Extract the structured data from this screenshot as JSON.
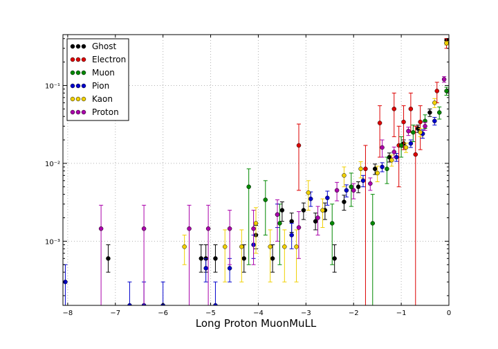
{
  "chart_data": {
    "type": "scatter",
    "xlabel": "Long Proton MuonMuLL",
    "ylabel": "",
    "title": "",
    "xlim": [
      -8.1,
      0
    ],
    "ylim": [
      0.00015,
      0.45
    ],
    "yscale": "log",
    "grid": true,
    "legend_position": "top-left",
    "xticks": [
      -8,
      -7,
      -6,
      -5,
      -4,
      -3,
      -2,
      -1,
      0
    ],
    "xtick_labels": [
      "−8",
      "−7",
      "−6",
      "−5",
      "−4",
      "−3",
      "−2",
      "−1",
      "0"
    ],
    "yticks": [
      0.001,
      0.01,
      0.1
    ],
    "ytick_labels": [
      "10⁻³",
      "10⁻²",
      "10⁻¹"
    ],
    "series": [
      {
        "name": "Ghost",
        "color": "#000000",
        "points": [
          {
            "x": -7.15,
            "y": 0.0006,
            "lo": 0.0004,
            "hi": 0.0009
          },
          {
            "x": -5.2,
            "y": 0.0006,
            "lo": 0.0004,
            "hi": 0.0009
          },
          {
            "x": -5.1,
            "y": 0.0006,
            "lo": 0.0004,
            "hi": 0.0009
          },
          {
            "x": -4.9,
            "y": 0.0006,
            "lo": 0.0004,
            "hi": 0.0009
          },
          {
            "x": -4.3,
            "y": 0.0006,
            "lo": 0.0004,
            "hi": 0.0009
          },
          {
            "x": -4.05,
            "y": 0.0012,
            "lo": 0.0008,
            "hi": 0.0016
          },
          {
            "x": -3.7,
            "y": 0.0006,
            "lo": 0.0004,
            "hi": 0.0009
          },
          {
            "x": -3.5,
            "y": 0.0025,
            "lo": 0.0018,
            "hi": 0.0032
          },
          {
            "x": -3.3,
            "y": 0.0018,
            "lo": 0.0013,
            "hi": 0.0023
          },
          {
            "x": -3.05,
            "y": 0.0025,
            "lo": 0.0019,
            "hi": 0.0031
          },
          {
            "x": -2.8,
            "y": 0.0018,
            "lo": 0.0014,
            "hi": 0.0023
          },
          {
            "x": -2.6,
            "y": 0.0025,
            "lo": 0.0019,
            "hi": 0.0031
          },
          {
            "x": -2.4,
            "y": 0.0006,
            "lo": 0.0004,
            "hi": 0.0009
          },
          {
            "x": -2.2,
            "y": 0.0032,
            "lo": 0.0025,
            "hi": 0.0039
          },
          {
            "x": -1.9,
            "y": 0.005,
            "lo": 0.0042,
            "hi": 0.0058
          },
          {
            "x": -1.55,
            "y": 0.0085,
            "lo": 0.0072,
            "hi": 0.0098
          },
          {
            "x": -1.25,
            "y": 0.012,
            "lo": 0.0104,
            "hi": 0.0136
          },
          {
            "x": -0.95,
            "y": 0.018,
            "lo": 0.016,
            "hi": 0.02
          },
          {
            "x": -0.65,
            "y": 0.028,
            "lo": 0.025,
            "hi": 0.031
          },
          {
            "x": -0.4,
            "y": 0.045,
            "lo": 0.04,
            "hi": 0.05
          },
          {
            "x": -0.05,
            "y": 0.38,
            "lo": 0.36,
            "hi": 0.4
          }
        ]
      },
      {
        "name": "Electron",
        "color": "#dd0000",
        "points": [
          {
            "x": -3.15,
            "y": 0.017,
            "lo": 0.0045,
            "hi": 0.032
          },
          {
            "x": -1.75,
            "y": 0.0085,
            "lo": 0.00015,
            "hi": 0.017
          },
          {
            "x": -1.45,
            "y": 0.033,
            "lo": 0.012,
            "hi": 0.055
          },
          {
            "x": -1.15,
            "y": 0.05,
            "lo": 0.022,
            "hi": 0.08
          },
          {
            "x": -1.05,
            "y": 0.017,
            "lo": 0.005,
            "hi": 0.03
          },
          {
            "x": -0.95,
            "y": 0.034,
            "lo": 0.015,
            "hi": 0.055
          },
          {
            "x": -0.8,
            "y": 0.05,
            "lo": 0.025,
            "hi": 0.08
          },
          {
            "x": -0.7,
            "y": 0.013,
            "lo": 0.00015,
            "hi": 0.03
          },
          {
            "x": -0.6,
            "y": 0.034,
            "lo": 0.015,
            "hi": 0.055
          },
          {
            "x": -0.25,
            "y": 0.085,
            "lo": 0.06,
            "hi": 0.11
          },
          {
            "x": -0.05,
            "y": 0.35,
            "lo": 0.3,
            "hi": 0.4
          }
        ]
      },
      {
        "name": "Muon",
        "color": "#008800",
        "points": [
          {
            "x": -4.2,
            "y": 0.005,
            "lo": 0.0005,
            "hi": 0.0085
          },
          {
            "x": -3.85,
            "y": 0.0034,
            "lo": 0.0012,
            "hi": 0.006
          },
          {
            "x": -3.55,
            "y": 0.0017,
            "lo": 0.0005,
            "hi": 0.003
          },
          {
            "x": -2.45,
            "y": 0.0017,
            "lo": 0.0005,
            "hi": 0.003
          },
          {
            "x": -2.05,
            "y": 0.005,
            "lo": 0.0028,
            "hi": 0.0075
          },
          {
            "x": -1.6,
            "y": 0.0017,
            "lo": 0.00015,
            "hi": 0.004
          },
          {
            "x": -1.3,
            "y": 0.0085,
            "lo": 0.0055,
            "hi": 0.012
          },
          {
            "x": -1.0,
            "y": 0.017,
            "lo": 0.012,
            "hi": 0.022
          },
          {
            "x": -0.75,
            "y": 0.025,
            "lo": 0.019,
            "hi": 0.031
          },
          {
            "x": -0.5,
            "y": 0.035,
            "lo": 0.028,
            "hi": 0.042
          },
          {
            "x": -0.2,
            "y": 0.045,
            "lo": 0.037,
            "hi": 0.053
          },
          {
            "x": -0.05,
            "y": 0.085,
            "lo": 0.075,
            "hi": 0.095
          }
        ]
      },
      {
        "name": "Pion",
        "color": "#0000cc",
        "points": [
          {
            "x": -8.05,
            "y": 0.0003,
            "lo": 0.00015,
            "hi": 0.0005
          },
          {
            "x": -6.7,
            "y": 0.00015,
            "lo": 0.00015,
            "hi": 0.0003
          },
          {
            "x": -6.4,
            "y": 0.00015,
            "lo": 0.00015,
            "hi": 0.0003
          },
          {
            "x": -6.0,
            "y": 0.00015,
            "lo": 0.00015,
            "hi": 0.0003
          },
          {
            "x": -5.1,
            "y": 0.00045,
            "lo": 0.0003,
            "hi": 0.0006
          },
          {
            "x": -4.9,
            "y": 0.00015,
            "lo": 0.00015,
            "hi": 0.0003
          },
          {
            "x": -4.6,
            "y": 0.00045,
            "lo": 0.0003,
            "hi": 0.0006
          },
          {
            "x": -4.1,
            "y": 0.0009,
            "lo": 0.0006,
            "hi": 0.0012
          },
          {
            "x": -3.6,
            "y": 0.0022,
            "lo": 0.0015,
            "hi": 0.003
          },
          {
            "x": -3.3,
            "y": 0.0012,
            "lo": 0.0008,
            "hi": 0.0017
          },
          {
            "x": -2.9,
            "y": 0.0035,
            "lo": 0.0028,
            "hi": 0.0043
          },
          {
            "x": -2.55,
            "y": 0.0036,
            "lo": 0.0029,
            "hi": 0.0044
          },
          {
            "x": -2.15,
            "y": 0.0045,
            "lo": 0.0037,
            "hi": 0.0053
          },
          {
            "x": -1.8,
            "y": 0.006,
            "lo": 0.005,
            "hi": 0.007
          },
          {
            "x": -1.4,
            "y": 0.009,
            "lo": 0.0078,
            "hi": 0.0102
          },
          {
            "x": -1.1,
            "y": 0.012,
            "lo": 0.0106,
            "hi": 0.0134
          },
          {
            "x": -0.8,
            "y": 0.018,
            "lo": 0.016,
            "hi": 0.02
          },
          {
            "x": -0.55,
            "y": 0.024,
            "lo": 0.021,
            "hi": 0.027
          },
          {
            "x": -0.3,
            "y": 0.035,
            "lo": 0.031,
            "hi": 0.039
          }
        ]
      },
      {
        "name": "Kaon",
        "color": "#f0d000",
        "points": [
          {
            "x": -5.55,
            "y": 0.00085,
            "lo": 0.0005,
            "hi": 0.0012
          },
          {
            "x": -4.7,
            "y": 0.00085,
            "lo": 0.0003,
            "hi": 0.0014
          },
          {
            "x": -4.35,
            "y": 0.00085,
            "lo": 0.0003,
            "hi": 0.0014
          },
          {
            "x": -4.05,
            "y": 0.0017,
            "lo": 0.0007,
            "hi": 0.0027
          },
          {
            "x": -3.75,
            "y": 0.00085,
            "lo": 0.0003,
            "hi": 0.0014
          },
          {
            "x": -3.45,
            "y": 0.00085,
            "lo": 0.0003,
            "hi": 0.0014
          },
          {
            "x": -3.2,
            "y": 0.00085,
            "lo": 0.0003,
            "hi": 0.0014
          },
          {
            "x": -2.95,
            "y": 0.0042,
            "lo": 0.0025,
            "hi": 0.006
          },
          {
            "x": -2.65,
            "y": 0.0025,
            "lo": 0.0015,
            "hi": 0.0035
          },
          {
            "x": -2.2,
            "y": 0.007,
            "lo": 0.005,
            "hi": 0.009
          },
          {
            "x": -1.85,
            "y": 0.0085,
            "lo": 0.0065,
            "hi": 0.0105
          },
          {
            "x": -1.5,
            "y": 0.0075,
            "lo": 0.0058,
            "hi": 0.0092
          },
          {
            "x": -1.2,
            "y": 0.011,
            "lo": 0.0092,
            "hi": 0.0128
          },
          {
            "x": -0.9,
            "y": 0.016,
            "lo": 0.0138,
            "hi": 0.0182
          },
          {
            "x": -0.6,
            "y": 0.025,
            "lo": 0.022,
            "hi": 0.028
          },
          {
            "x": -0.3,
            "y": 0.06,
            "lo": 0.052,
            "hi": 0.068
          },
          {
            "x": -0.05,
            "y": 0.35,
            "lo": 0.33,
            "hi": 0.37
          }
        ]
      },
      {
        "name": "Proton",
        "color": "#aa00aa",
        "points": [
          {
            "x": -7.3,
            "y": 0.00145,
            "lo": 0.00015,
            "hi": 0.0029
          },
          {
            "x": -6.4,
            "y": 0.00145,
            "lo": 0.00015,
            "hi": 0.0029
          },
          {
            "x": -5.45,
            "y": 0.00145,
            "lo": 0.00015,
            "hi": 0.0029
          },
          {
            "x": -5.05,
            "y": 0.00145,
            "lo": 0.00015,
            "hi": 0.0029
          },
          {
            "x": -4.6,
            "y": 0.00145,
            "lo": 0.0005,
            "hi": 0.0025
          },
          {
            "x": -4.1,
            "y": 0.00145,
            "lo": 0.0005,
            "hi": 0.0025
          },
          {
            "x": -3.6,
            "y": 0.0022,
            "lo": 0.001,
            "hi": 0.0034
          },
          {
            "x": -3.15,
            "y": 0.0015,
            "lo": 0.0006,
            "hi": 0.0024
          },
          {
            "x": -2.75,
            "y": 0.002,
            "lo": 0.0012,
            "hi": 0.0028
          },
          {
            "x": -2.35,
            "y": 0.0045,
            "lo": 0.0033,
            "hi": 0.0057
          },
          {
            "x": -2.0,
            "y": 0.0045,
            "lo": 0.0035,
            "hi": 0.0055
          },
          {
            "x": -1.65,
            "y": 0.0055,
            "lo": 0.0045,
            "hi": 0.0065
          },
          {
            "x": -1.4,
            "y": 0.016,
            "lo": 0.012,
            "hi": 0.02
          },
          {
            "x": -1.15,
            "y": 0.014,
            "lo": 0.0118,
            "hi": 0.0162
          },
          {
            "x": -0.85,
            "y": 0.026,
            "lo": 0.0228,
            "hi": 0.0292
          },
          {
            "x": -0.5,
            "y": 0.03,
            "lo": 0.0265,
            "hi": 0.0335
          },
          {
            "x": -0.1,
            "y": 0.12,
            "lo": 0.11,
            "hi": 0.13
          }
        ]
      }
    ]
  }
}
